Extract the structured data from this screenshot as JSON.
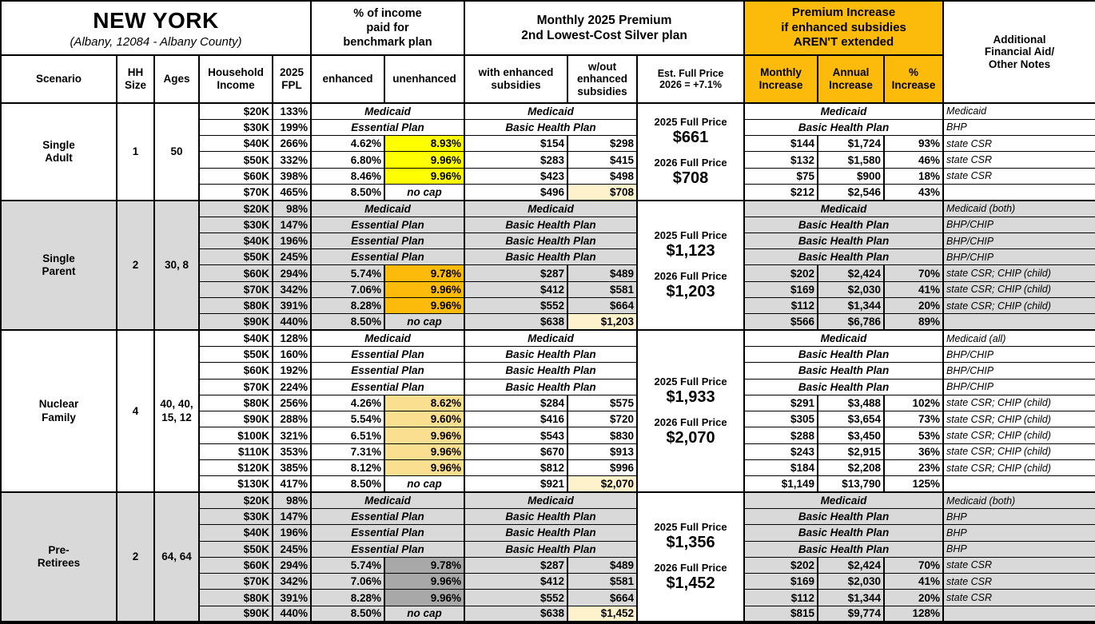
{
  "header": {
    "title": "NEW YORK",
    "subtitle": "(Albany, 12084 - Albany County)",
    "groups": {
      "income_pct": "% of income\npaid for\nbenchmark plan",
      "premium": "Monthly 2025 Premium\n2nd Lowest-Cost Silver plan",
      "increase": "Premium Increase\nif enhanced subsidies\nAREN'T extended",
      "notes": "Additional\nFinancial Aid/\nOther Notes"
    },
    "columns": [
      "Scenario",
      "HH\nSize",
      "Ages",
      "Household\nIncome",
      "2025\nFPL",
      "enhanced",
      "unenhanced",
      "with enhanced\nsubsidies",
      "w/out\nenhanced\nsubsidies",
      "Est. Full Price\n2026 = +7.1%",
      "Monthly\nIncrease",
      "Annual\nIncrease",
      "%\nIncrease"
    ]
  },
  "colors": {
    "gold": "#FCBB0A",
    "yellow": "#FFFF00",
    "orange": "#FCBB0A",
    "tan": "#FBDF90",
    "dark_gray": "#A8A8A8",
    "cream": "#FDF2CC",
    "section_gray": "#D9D9D9"
  },
  "scenarios": [
    {
      "name": "Single\nAdult",
      "hh_size": "1",
      "ages": "50",
      "shade": false,
      "highlight": "yellow",
      "full_price": {
        "l25": "2025 Full Price",
        "v25": "$661",
        "l26": "2026 Full Price",
        "v26": "$708"
      },
      "rows": [
        {
          "income": "$20K",
          "fpl": "133%",
          "plan": "Medicaid",
          "premium_plan": "Medicaid",
          "increase_plan": "Medicaid",
          "note": "Medicaid"
        },
        {
          "income": "$30K",
          "fpl": "199%",
          "plan": "Essential Plan",
          "premium_plan": "Basic Health Plan",
          "increase_plan": "Basic Health Plan",
          "note": "BHP"
        },
        {
          "income": "$40K",
          "fpl": "266%",
          "enhanced": "4.62%",
          "unenhanced": "8.93%",
          "hl": true,
          "with_sub": "$154",
          "wo_sub": "$298",
          "monthly": "$144",
          "annual": "$1,724",
          "pct": "93%",
          "note": "state CSR"
        },
        {
          "income": "$50K",
          "fpl": "332%",
          "enhanced": "6.80%",
          "unenhanced": "9.96%",
          "hl": true,
          "with_sub": "$283",
          "wo_sub": "$415",
          "monthly": "$132",
          "annual": "$1,580",
          "pct": "46%",
          "note": "state CSR"
        },
        {
          "income": "$60K",
          "fpl": "398%",
          "enhanced": "8.46%",
          "unenhanced": "9.96%",
          "hl": true,
          "with_sub": "$423",
          "wo_sub": "$498",
          "monthly": "$75",
          "annual": "$900",
          "pct": "18%",
          "note": "state CSR"
        },
        {
          "income": "$70K",
          "fpl": "465%",
          "enhanced": "8.50%",
          "unenhanced": "no cap",
          "nocap": true,
          "with_sub": "$496",
          "wo_sub": "$708",
          "wo_hl": true,
          "monthly": "$212",
          "annual": "$2,546",
          "pct": "43%",
          "note": ""
        }
      ]
    },
    {
      "name": "Single\nParent",
      "hh_size": "2",
      "ages": "30, 8",
      "shade": true,
      "highlight": "orange",
      "full_price": {
        "l25": "2025 Full Price",
        "v25": "$1,123",
        "l26": "2026 Full Price",
        "v26": "$1,203"
      },
      "rows": [
        {
          "income": "$20K",
          "fpl": "98%",
          "plan": "Medicaid",
          "premium_plan": "Medicaid",
          "increase_plan": "Medicaid",
          "note": "Medicaid (both)"
        },
        {
          "income": "$30K",
          "fpl": "147%",
          "plan": "Essential Plan",
          "premium_plan": "Basic Health Plan",
          "increase_plan": "Basic Health Plan",
          "note": "BHP/CHIP"
        },
        {
          "income": "$40K",
          "fpl": "196%",
          "plan": "Essential Plan",
          "premium_plan": "Basic Health Plan",
          "increase_plan": "Basic Health Plan",
          "note": "BHP/CHIP"
        },
        {
          "income": "$50K",
          "fpl": "245%",
          "plan": "Essential Plan",
          "premium_plan": "Basic Health Plan",
          "increase_plan": "Basic Health Plan",
          "note": "BHP/CHIP"
        },
        {
          "income": "$60K",
          "fpl": "294%",
          "enhanced": "5.74%",
          "unenhanced": "9.78%",
          "hl": true,
          "with_sub": "$287",
          "wo_sub": "$489",
          "monthly": "$202",
          "annual": "$2,424",
          "pct": "70%",
          "note": "state CSR; CHIP (child)"
        },
        {
          "income": "$70K",
          "fpl": "342%",
          "enhanced": "7.06%",
          "unenhanced": "9.96%",
          "hl": true,
          "with_sub": "$412",
          "wo_sub": "$581",
          "monthly": "$169",
          "annual": "$2,030",
          "pct": "41%",
          "note": "state CSR; CHIP (child)"
        },
        {
          "income": "$80K",
          "fpl": "391%",
          "enhanced": "8.28%",
          "unenhanced": "9.96%",
          "hl": true,
          "with_sub": "$552",
          "wo_sub": "$664",
          "monthly": "$112",
          "annual": "$1,344",
          "pct": "20%",
          "note": "state CSR; CHIP (child)"
        },
        {
          "income": "$90K",
          "fpl": "440%",
          "enhanced": "8.50%",
          "unenhanced": "no cap",
          "nocap": true,
          "with_sub": "$638",
          "wo_sub": "$1,203",
          "wo_hl": true,
          "monthly": "$566",
          "annual": "$6,786",
          "pct": "89%",
          "note": ""
        }
      ]
    },
    {
      "name": "Nuclear\nFamily",
      "hh_size": "4",
      "ages": "40, 40,\n15, 12",
      "shade": false,
      "highlight": "tan",
      "full_price": {
        "l25": "2025 Full Price",
        "v25": "$1,933",
        "l26": "2026 Full Price",
        "v26": "$2,070"
      },
      "rows": [
        {
          "income": "$40K",
          "fpl": "128%",
          "plan": "Medicaid",
          "premium_plan": "Medicaid",
          "increase_plan": "Medicaid",
          "note": "Medicaid (all)"
        },
        {
          "income": "$50K",
          "fpl": "160%",
          "plan": "Essential Plan",
          "premium_plan": "Basic Health Plan",
          "increase_plan": "Basic Health Plan",
          "note": "BHP/CHIP"
        },
        {
          "income": "$60K",
          "fpl": "192%",
          "plan": "Essential Plan",
          "premium_plan": "Basic Health Plan",
          "increase_plan": "Basic Health Plan",
          "note": "BHP/CHIP"
        },
        {
          "income": "$70K",
          "fpl": "224%",
          "plan": "Essential Plan",
          "premium_plan": "Basic Health Plan",
          "increase_plan": "Basic Health Plan",
          "note": "BHP/CHIP"
        },
        {
          "income": "$80K",
          "fpl": "256%",
          "enhanced": "4.26%",
          "unenhanced": "8.62%",
          "hl": true,
          "with_sub": "$284",
          "wo_sub": "$575",
          "monthly": "$291",
          "annual": "$3,488",
          "pct": "102%",
          "note": "state CSR; CHIP (child)"
        },
        {
          "income": "$90K",
          "fpl": "288%",
          "enhanced": "5.54%",
          "unenhanced": "9.60%",
          "hl": true,
          "with_sub": "$416",
          "wo_sub": "$720",
          "monthly": "$305",
          "annual": "$3,654",
          "pct": "73%",
          "note": "state CSR; CHIP (child)"
        },
        {
          "income": "$100K",
          "fpl": "321%",
          "enhanced": "6.51%",
          "unenhanced": "9.96%",
          "hl": true,
          "with_sub": "$543",
          "wo_sub": "$830",
          "monthly": "$288",
          "annual": "$3,450",
          "pct": "53%",
          "note": "state CSR; CHIP (child)"
        },
        {
          "income": "$110K",
          "fpl": "353%",
          "enhanced": "7.31%",
          "unenhanced": "9.96%",
          "hl": true,
          "with_sub": "$670",
          "wo_sub": "$913",
          "monthly": "$243",
          "annual": "$2,915",
          "pct": "36%",
          "note": "state CSR; CHIP (child)"
        },
        {
          "income": "$120K",
          "fpl": "385%",
          "enhanced": "8.12%",
          "unenhanced": "9.96%",
          "hl": true,
          "with_sub": "$812",
          "wo_sub": "$996",
          "monthly": "$184",
          "annual": "$2,208",
          "pct": "23%",
          "note": "state CSR; CHIP (child)"
        },
        {
          "income": "$130K",
          "fpl": "417%",
          "enhanced": "8.50%",
          "unenhanced": "no cap",
          "nocap": true,
          "with_sub": "$921",
          "wo_sub": "$2,070",
          "wo_hl": true,
          "monthly": "$1,149",
          "annual": "$13,790",
          "pct": "125%",
          "note": ""
        }
      ]
    },
    {
      "name": "Pre-\nRetirees",
      "hh_size": "2",
      "ages": "64, 64",
      "shade": true,
      "highlight": "dark_gray",
      "full_price": {
        "l25": "2025 Full Price",
        "v25": "$1,356",
        "l26": "2026 Full Price",
        "v26": "$1,452"
      },
      "rows": [
        {
          "income": "$20K",
          "fpl": "98%",
          "plan": "Medicaid",
          "premium_plan": "Medicaid",
          "increase_plan": "Medicaid",
          "note": "Medicaid (both)"
        },
        {
          "income": "$30K",
          "fpl": "147%",
          "plan": "Essential Plan",
          "premium_plan": "Basic Health Plan",
          "increase_plan": "Basic Health Plan",
          "note": "BHP"
        },
        {
          "income": "$40K",
          "fpl": "196%",
          "plan": "Essential Plan",
          "premium_plan": "Basic Health Plan",
          "increase_plan": "Basic Health Plan",
          "note": "BHP"
        },
        {
          "income": "$50K",
          "fpl": "245%",
          "plan": "Essential Plan",
          "premium_plan": "Basic Health Plan",
          "increase_plan": "Basic Health Plan",
          "note": "BHP"
        },
        {
          "income": "$60K",
          "fpl": "294%",
          "enhanced": "5.74%",
          "unenhanced": "9.78%",
          "hl": true,
          "with_sub": "$287",
          "wo_sub": "$489",
          "monthly": "$202",
          "annual": "$2,424",
          "pct": "70%",
          "note": "state CSR"
        },
        {
          "income": "$70K",
          "fpl": "342%",
          "enhanced": "7.06%",
          "unenhanced": "9.96%",
          "hl": true,
          "with_sub": "$412",
          "wo_sub": "$581",
          "monthly": "$169",
          "annual": "$2,030",
          "pct": "41%",
          "note": "state CSR"
        },
        {
          "income": "$80K",
          "fpl": "391%",
          "enhanced": "8.28%",
          "unenhanced": "9.96%",
          "hl": true,
          "with_sub": "$552",
          "wo_sub": "$664",
          "monthly": "$112",
          "annual": "$1,344",
          "pct": "20%",
          "note": "state CSR"
        },
        {
          "income": "$90K",
          "fpl": "440%",
          "enhanced": "8.50%",
          "unenhanced": "no cap",
          "nocap": true,
          "with_sub": "$638",
          "wo_sub": "$1,452",
          "wo_hl": true,
          "monthly": "$815",
          "annual": "$9,774",
          "pct": "128%",
          "note": ""
        }
      ]
    }
  ]
}
